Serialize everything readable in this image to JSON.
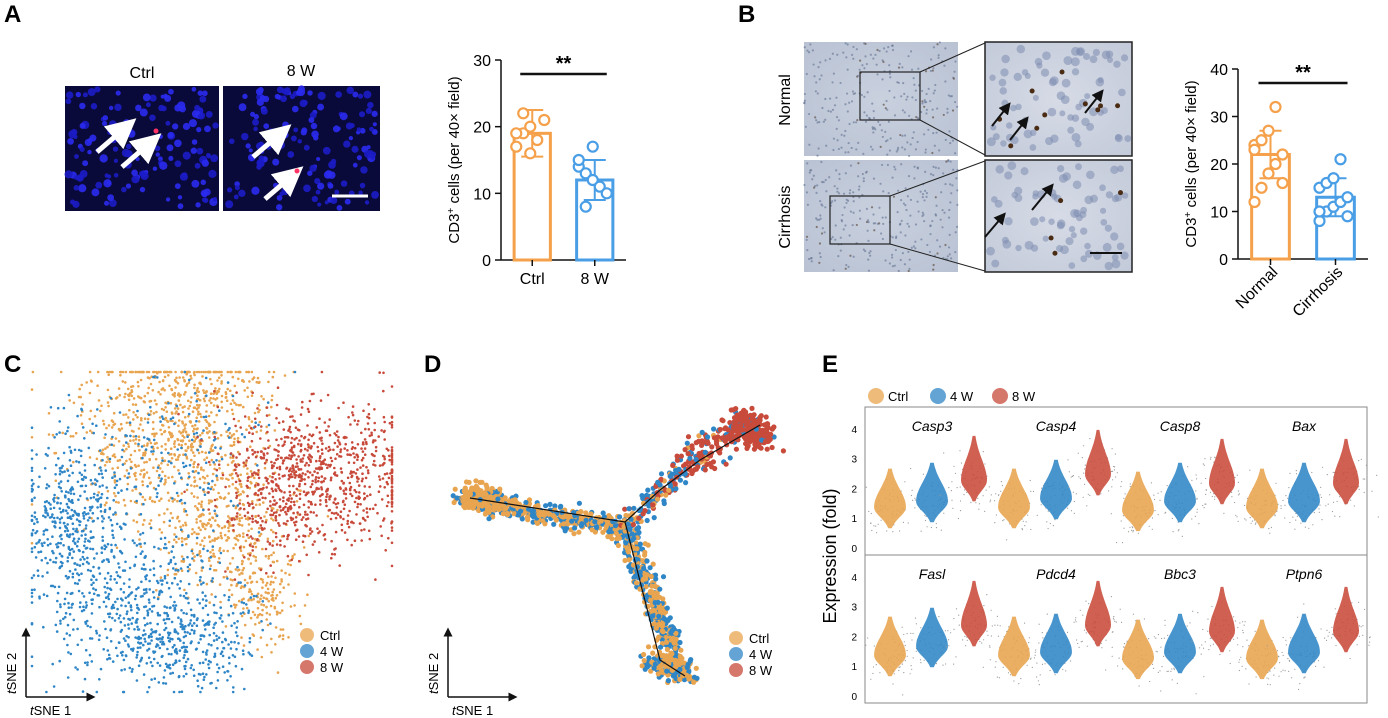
{
  "panels": {
    "A": {
      "letter": "A",
      "micro_labels": [
        "Ctrl",
        "8 W"
      ],
      "chart_data": {
        "type": "bar",
        "categories": [
          "Ctrl",
          "8 W"
        ],
        "values": [
          19,
          12
        ],
        "error": [
          3.5,
          3
        ],
        "points": [
          [
            17,
            19,
            20,
            18,
            21,
            19,
            22,
            16
          ],
          [
            14,
            13,
            12,
            11,
            10,
            15,
            8,
            17
          ]
        ],
        "ylabel_main": "CD3",
        "ylabel_sup": "+",
        "ylabel_rest": " cells (per 40× field)",
        "yticks": [
          0,
          10,
          20,
          30
        ],
        "ylim": [
          0,
          30
        ],
        "significance": "**",
        "colors": [
          "#f5a04a",
          "#4a9ee6"
        ]
      }
    },
    "B": {
      "letter": "B",
      "row_labels": [
        "Normal",
        "Cirrhosis"
      ],
      "chart_data": {
        "type": "bar",
        "categories": [
          "Normal",
          "Cirrhosis"
        ],
        "values": [
          22,
          13
        ],
        "error": [
          5,
          4
        ],
        "points": [
          [
            12,
            15,
            18,
            20,
            22,
            24,
            25,
            27,
            32,
            16,
            23
          ],
          [
            8,
            10,
            11,
            12,
            13,
            15,
            16,
            17,
            21,
            9,
            10
          ]
        ],
        "ylabel_main": "CD3",
        "ylabel_sup": "+",
        "ylabel_rest": " cells (per 40× field)",
        "yticks": [
          0,
          10,
          20,
          30,
          40
        ],
        "ylim": [
          0,
          40
        ],
        "significance": "**",
        "colors": [
          "#f5a04a",
          "#4a9ee6"
        ]
      }
    },
    "C": {
      "letter": "C",
      "chart_data": {
        "type": "scatter",
        "xlabel_italic": "t",
        "xlabel": "SNE 1",
        "ylabel_italic": "t",
        "ylabel": "SNE 2",
        "legend": [
          "Ctrl",
          "4 W",
          "8 W"
        ],
        "colors": [
          "#e8a44f",
          "#2f86c7",
          "#c84a3a"
        ]
      }
    },
    "D": {
      "letter": "D",
      "chart_data": {
        "type": "scatter",
        "xlabel_italic": "t",
        "xlabel": "SNE 1",
        "ylabel_italic": "t",
        "ylabel": "SNE 2",
        "legend": [
          "Ctrl",
          "4 W",
          "8 W"
        ],
        "colors": [
          "#e8a44f",
          "#2f86c7",
          "#c84a3a"
        ]
      }
    },
    "E": {
      "letter": "E",
      "chart_data": {
        "type": "violin",
        "legend": [
          "Ctrl",
          "4 W",
          "8 W"
        ],
        "ylabel": "Expression (fold)",
        "yticks": [
          "0",
          "1",
          "2",
          "3",
          "4"
        ],
        "genes_top": [
          "Casp3",
          "Casp4",
          "Casp8",
          "Bax"
        ],
        "genes_bottom": [
          "Fasl",
          "Pdcd4",
          "Bbc3",
          "Ptpn6"
        ],
        "medians_top": [
          [
            1.4,
            1.6,
            2.3
          ],
          [
            1.4,
            1.7,
            2.5
          ],
          [
            1.3,
            1.6,
            2.2
          ],
          [
            1.4,
            1.6,
            2.2
          ]
        ],
        "medians_bottom": [
          [
            1.4,
            1.7,
            2.4
          ],
          [
            1.4,
            1.5,
            2.4
          ],
          [
            1.3,
            1.5,
            2.2
          ],
          [
            1.3,
            1.5,
            2.2
          ]
        ],
        "colors": [
          "#e8a44f",
          "#2f86c7",
          "#c84a3a"
        ]
      }
    }
  }
}
